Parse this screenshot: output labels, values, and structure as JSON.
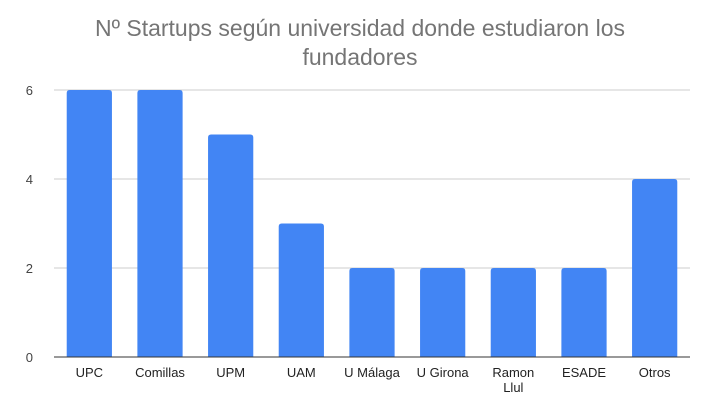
{
  "chart_data": {
    "type": "bar",
    "title": "Nº Startups según universidad donde estudiaron los fundadores",
    "title_lines": [
      "Nº Startups según universidad donde estudiaron los",
      "fundadores"
    ],
    "categories": [
      "UPC",
      "Comillas",
      "UPM",
      "UAM",
      "U Málaga",
      "U Girona",
      "Ramon Llul",
      "ESADE",
      "Otros"
    ],
    "category_lines": [
      [
        "UPC"
      ],
      [
        "Comillas"
      ],
      [
        "UPM"
      ],
      [
        "UAM"
      ],
      [
        "U Málaga"
      ],
      [
        "U Girona"
      ],
      [
        "Ramon",
        "Llul"
      ],
      [
        "ESADE"
      ],
      [
        "Otros"
      ]
    ],
    "values": [
      6,
      6,
      5,
      3,
      2,
      2,
      2,
      2,
      4
    ],
    "yticks": [
      "0",
      "2",
      "4",
      "6"
    ],
    "ylim": [
      0,
      6
    ],
    "xlabel": "",
    "ylabel": "",
    "grid": true,
    "legend": "none",
    "bar_color": "#4285f4",
    "grid_color": "#cccccc",
    "baseline_color": "#333333"
  }
}
